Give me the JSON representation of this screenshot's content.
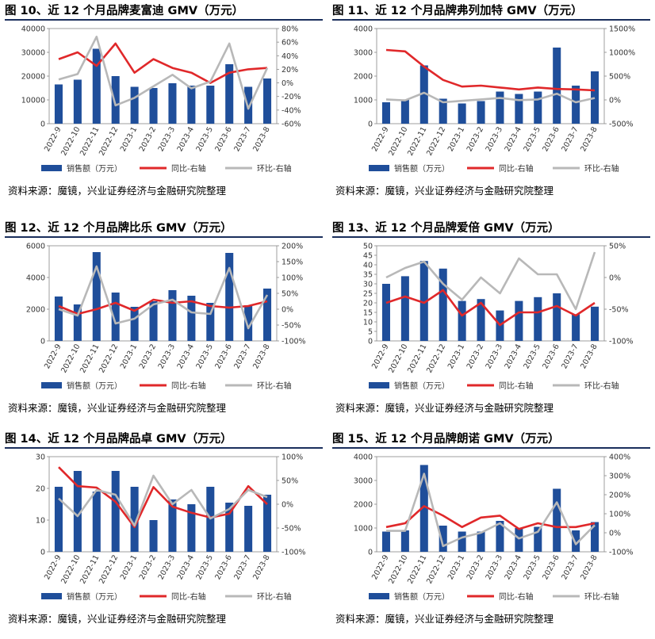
{
  "charts": [
    {
      "figure_title": "图 10、近 12 个月品牌麦富迪 GMV（万元）",
      "source": "资料来源：魔镜，兴业证券经济与金融研究院整理",
      "chart_data": {
        "type": "bar",
        "categories": [
          "2022-9",
          "2022-10",
          "2022-11",
          "2022-12",
          "2023-1",
          "2023-2",
          "2023-3",
          "2023-4",
          "2023-5",
          "2023-6",
          "2023-7",
          "2023-8"
        ],
        "series": [
          {
            "name": "销售额（万元）",
            "type": "bar",
            "axis": "left",
            "color": "#1f4e9a",
            "values": [
              16500,
              18500,
              31500,
              20000,
              15500,
              15000,
              17000,
              16000,
              16000,
              25000,
              15500,
              19000
            ]
          },
          {
            "name": "同比-右轴",
            "type": "line",
            "axis": "right",
            "color": "#e0282a",
            "values": [
              35,
              45,
              25,
              58,
              15,
              35,
              22,
              15,
              0,
              15,
              20,
              22
            ]
          },
          {
            "name": "环比-右轴",
            "type": "line",
            "axis": "right",
            "color": "#b8b8b8",
            "values": [
              5,
              13,
              68,
              -33,
              -22,
              -5,
              12,
              -8,
              2,
              58,
              -38,
              22
            ]
          }
        ],
        "y_left": {
          "min": 0,
          "max": 40000,
          "ticks": [
            "0",
            "10000",
            "20000",
            "30000",
            "40000"
          ]
        },
        "y_right": {
          "min": -60,
          "max": 80,
          "ticks": [
            "-60%",
            "-40%",
            "-20%",
            "0%",
            "20%",
            "40%",
            "60%",
            "80%"
          ]
        },
        "legend_position": "bottom"
      }
    },
    {
      "figure_title": "图 11、近 12 个月品牌弗列加特 GMV（万元）",
      "source": "资料来源：魔镜，兴业证券经济与金融研究院整理",
      "chart_data": {
        "type": "bar",
        "categories": [
          "2022-9",
          "2022-10",
          "2022-11",
          "2022-12",
          "2023-1",
          "2023-2",
          "2023-3",
          "2023-4",
          "2023-5",
          "2023-6",
          "2023-7",
          "2023-8"
        ],
        "series": [
          {
            "name": "销售额（万元）",
            "type": "bar",
            "axis": "left",
            "color": "#1f4e9a",
            "values": [
              900,
              1000,
              2450,
              1050,
              850,
              950,
              1350,
              1250,
              1350,
              3200,
              1600,
              2200
            ]
          },
          {
            "name": "同比-右轴",
            "type": "line",
            "axis": "right",
            "color": "#e0282a",
            "values": [
              1050,
              1020,
              700,
              420,
              280,
              300,
              260,
              220,
              260,
              230,
              220,
              200
            ]
          },
          {
            "name": "环比-右轴",
            "type": "line",
            "axis": "right",
            "color": "#b8b8b8",
            "values": [
              10,
              -10,
              150,
              -50,
              -20,
              10,
              40,
              -5,
              10,
              130,
              -50,
              40
            ]
          }
        ],
        "y_left": {
          "min": 0,
          "max": 4000,
          "ticks": [
            "0",
            "1000",
            "2000",
            "3000",
            "4000"
          ]
        },
        "y_right": {
          "min": -500,
          "max": 1500,
          "ticks": [
            "-500%",
            "0%",
            "500%",
            "1000%",
            "1500%"
          ]
        },
        "legend_position": "bottom"
      }
    },
    {
      "figure_title": "图 12、近 12 个月品牌比乐 GMV（万元）",
      "source": "资料来源：魔镜，兴业证券经济与金融研究院整理",
      "chart_data": {
        "type": "bar",
        "categories": [
          "2022-9",
          "2022-10",
          "2022-11",
          "2022-12",
          "2023-1",
          "2023-2",
          "2023-3",
          "2023-4",
          "2023-5",
          "2023-6",
          "2023-7",
          "2023-8"
        ],
        "series": [
          {
            "name": "销售额（万元）",
            "type": "bar",
            "axis": "left",
            "color": "#1f4e9a",
            "values": [
              2800,
              2300,
              5600,
              3050,
              2150,
              2500,
              3200,
              2850,
              2400,
              5550,
              2250,
              3300
            ]
          },
          {
            "name": "同比-右轴",
            "type": "line",
            "axis": "right",
            "color": "#e0282a",
            "values": [
              10,
              -15,
              0,
              20,
              -5,
              30,
              20,
              25,
              10,
              5,
              10,
              25
            ]
          },
          {
            "name": "环比-右轴",
            "type": "line",
            "axis": "right",
            "color": "#b8b8b8",
            "values": [
              0,
              -20,
              135,
              -45,
              -30,
              15,
              30,
              -10,
              -15,
              130,
              -60,
              45
            ]
          }
        ],
        "y_left": {
          "min": 0,
          "max": 6000,
          "ticks": [
            "0",
            "2000",
            "4000",
            "6000"
          ]
        },
        "y_right": {
          "min": -100,
          "max": 200,
          "ticks": [
            "-100%",
            "-50%",
            "0%",
            "50%",
            "100%",
            "150%",
            "200%"
          ]
        },
        "legend_position": "bottom"
      }
    },
    {
      "figure_title": "图 13、近 12 个月品牌爱倍 GMV（万元）",
      "source": "资料来源：魔镜，兴业证券经济与金融研究院整理",
      "chart_data": {
        "type": "bar",
        "categories": [
          "2022-9",
          "2022-10",
          "2022-11",
          "2022-12",
          "2023-1",
          "2023-2",
          "2023-3",
          "2023-4",
          "2023-5",
          "2023-6",
          "2023-7",
          "2023-8"
        ],
        "series": [
          {
            "name": "销售额（万元）",
            "type": "bar",
            "axis": "left",
            "color": "#1f4e9a",
            "values": [
              30,
              34,
              42,
              38,
              21,
              22,
              16,
              21,
              23,
              25,
              14,
              18
            ]
          },
          {
            "name": "同比-右轴",
            "type": "line",
            "axis": "right",
            "color": "#e0282a",
            "values": [
              -40,
              -30,
              -40,
              -20,
              -60,
              -40,
              -75,
              -55,
              -55,
              -45,
              -60,
              -40
            ]
          },
          {
            "name": "环比-右轴",
            "type": "line",
            "axis": "right",
            "color": "#b8b8b8",
            "values": [
              0,
              15,
              25,
              -10,
              -35,
              0,
              -25,
              30,
              5,
              5,
              -50,
              40
            ]
          }
        ],
        "y_left": {
          "min": 0,
          "max": 50,
          "ticks": [
            "0",
            "5",
            "10",
            "15",
            "20",
            "25",
            "30",
            "35",
            "40",
            "45",
            "50"
          ]
        },
        "y_right": {
          "min": -100,
          "max": 50,
          "ticks": [
            "-100%",
            "-50%",
            "0%",
            "50%"
          ]
        },
        "legend_position": "bottom"
      }
    },
    {
      "figure_title": "图 14、近 12 个月品牌品卓 GMV（万元）",
      "source": "资料来源：魔镜，兴业证券经济与金融研究院整理",
      "chart_data": {
        "type": "bar",
        "categories": [
          "2022-9",
          "2022-10",
          "2022-11",
          "2022-12",
          "2023-1",
          "2023-2",
          "2023-3",
          "2023-4",
          "2023-5",
          "2023-6",
          "2023-7",
          "2023-8"
        ],
        "series": [
          {
            "name": "销售额（万元）",
            "type": "bar",
            "axis": "left",
            "color": "#1f4e9a",
            "values": [
              20.5,
              25.5,
              19,
              25.5,
              20.5,
              10,
              16.5,
              15,
              20.5,
              15.5,
              14.5,
              18
            ]
          },
          {
            "name": "同比-右轴",
            "type": "line",
            "axis": "right",
            "color": "#e0282a",
            "values": [
              78,
              38,
              35,
              5,
              -48,
              36,
              -5,
              -18,
              -28,
              -20,
              38,
              0
            ]
          },
          {
            "name": "环比-右轴",
            "type": "line",
            "axis": "right",
            "color": "#b8b8b8",
            "values": [
              12,
              -25,
              30,
              20,
              -45,
              60,
              0,
              30,
              -30,
              -10,
              30,
              15
            ]
          }
        ],
        "y_left": {
          "min": 0,
          "max": 30,
          "ticks": [
            "0",
            "10",
            "20",
            "30"
          ]
        },
        "y_right": {
          "min": -100,
          "max": 100,
          "ticks": [
            "-100%",
            "-50%",
            "0%",
            "50%",
            "100%"
          ]
        },
        "legend_position": "bottom"
      }
    },
    {
      "figure_title": "图 15、近 12 个月品牌朗诺 GMV（万元）",
      "source": "资料来源：魔镜，兴业证券经济与金融研究院整理",
      "chart_data": {
        "type": "bar",
        "categories": [
          "2022-9",
          "2022-10",
          "2022-11",
          "2022-12",
          "2023-1",
          "2023-2",
          "2023-3",
          "2023-4",
          "2023-5",
          "2023-6",
          "2023-7",
          "2023-8"
        ],
        "series": [
          {
            "name": "销售额（万元）",
            "type": "bar",
            "axis": "left",
            "color": "#1f4e9a",
            "values": [
              850,
              900,
              3650,
              1100,
              850,
              850,
              1300,
              1000,
              1050,
              2650,
              900,
              1250
            ]
          },
          {
            "name": "同比-右轴",
            "type": "line",
            "axis": "right",
            "color": "#e0282a",
            "values": [
              30,
              50,
              140,
              90,
              30,
              80,
              90,
              20,
              50,
              30,
              30,
              50
            ]
          },
          {
            "name": "环比-右轴",
            "type": "line",
            "axis": "right",
            "color": "#b8b8b8",
            "values": [
              10,
              10,
              310,
              -70,
              -25,
              0,
              50,
              -30,
              5,
              160,
              -60,
              40
            ]
          }
        ],
        "y_left": {
          "min": 0,
          "max": 4000,
          "ticks": [
            "0",
            "1000",
            "2000",
            "3000",
            "4000"
          ]
        },
        "y_right": {
          "min": -100,
          "max": 400,
          "ticks": [
            "-100%",
            "0%",
            "100%",
            "200%",
            "300%",
            "400%"
          ]
        },
        "legend_position": "bottom"
      }
    }
  ]
}
